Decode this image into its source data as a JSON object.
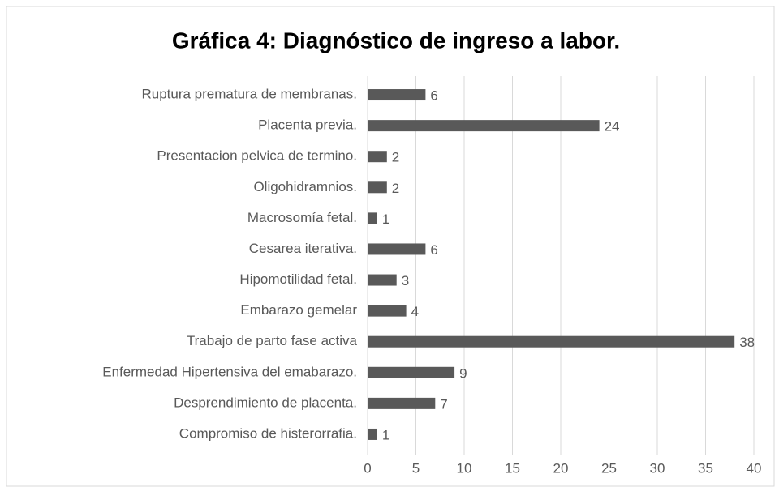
{
  "chart_data": {
    "type": "bar",
    "orientation": "horizontal",
    "title": "Gráfica 4: Diagnóstico de ingreso a labor.",
    "categories": [
      "Ruptura prematura de membranas.",
      "Placenta previa.",
      "Presentacion pelvica de termino.",
      "Oligohidramnios.",
      "Macrosomía fetal.",
      "Cesarea iterativa.",
      "Hipomotilidad fetal.",
      "Embarazo gemelar",
      "Trabajo de parto fase activa",
      "Enfermedad Hipertensiva del emabarazo.",
      "Desprendimiento de placenta.",
      "Compromiso de histerorrafia."
    ],
    "values": [
      6,
      24,
      2,
      2,
      1,
      6,
      3,
      4,
      38,
      9,
      7,
      1
    ],
    "color": "#595959",
    "xlim": [
      0,
      40
    ],
    "xticks": [
      0,
      5,
      10,
      15,
      20,
      25,
      30,
      35,
      40
    ],
    "grid": true
  }
}
